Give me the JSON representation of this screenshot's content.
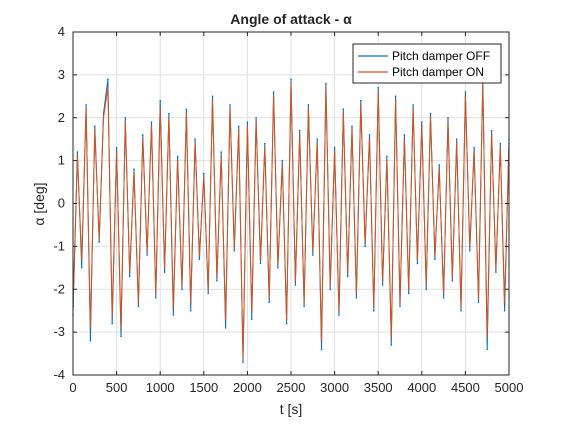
{
  "chart_data": {
    "type": "line",
    "title": "Angle of attack - α",
    "xlabel": "t [s]",
    "ylabel": "α [deg]",
    "xlim": [
      0,
      5000
    ],
    "ylim": [
      -4,
      4
    ],
    "xticks": [
      0,
      500,
      1000,
      1500,
      2000,
      2500,
      3000,
      3500,
      4000,
      4500,
      5000
    ],
    "yticks": [
      -4,
      -3,
      -2,
      -1,
      0,
      1,
      2,
      3,
      4
    ],
    "xtick_labels": [
      "0",
      "500",
      "1000",
      "1500",
      "2000",
      "2500",
      "3000",
      "3500",
      "4000",
      "4500",
      "5000"
    ],
    "ytick_labels": [
      "-4",
      "-3",
      "-2",
      "-1",
      "0",
      "1",
      "2",
      "3",
      "4"
    ],
    "grid": true,
    "legend_position": "top-right",
    "series": [
      {
        "name": "Pitch damper OFF",
        "color": "#0072BD",
        "x": [
          0,
          50,
          100,
          150,
          200,
          250,
          300,
          350,
          400,
          450,
          500,
          550,
          600,
          650,
          700,
          750,
          800,
          850,
          900,
          950,
          1000,
          1050,
          1100,
          1150,
          1200,
          1250,
          1300,
          1350,
          1400,
          1450,
          1500,
          1550,
          1600,
          1650,
          1700,
          1750,
          1800,
          1850,
          1900,
          1950,
          2000,
          2050,
          2100,
          2150,
          2200,
          2250,
          2300,
          2350,
          2400,
          2450,
          2500,
          2550,
          2600,
          2650,
          2700,
          2750,
          2800,
          2850,
          2900,
          2950,
          3000,
          3050,
          3100,
          3150,
          3200,
          3250,
          3300,
          3350,
          3400,
          3450,
          3500,
          3550,
          3600,
          3650,
          3700,
          3750,
          3800,
          3850,
          3900,
          3950,
          4000,
          4050,
          4100,
          4150,
          4200,
          4250,
          4300,
          4350,
          4400,
          4450,
          4500,
          4550,
          4600,
          4650,
          4700,
          4750,
          4800,
          4850,
          4900,
          4950,
          5000
        ],
        "values": [
          -2.6,
          1.2,
          -1.5,
          2.3,
          -3.2,
          1.8,
          -0.9,
          2.1,
          2.9,
          -2.8,
          1.3,
          -3.1,
          2.0,
          -1.7,
          0.8,
          -2.4,
          1.6,
          -1.2,
          1.9,
          -2.2,
          2.4,
          -1.6,
          2.1,
          -2.6,
          1.1,
          -2.0,
          2.2,
          -2.5,
          1.5,
          -1.3,
          0.7,
          -2.1,
          2.5,
          -1.8,
          1.2,
          -2.9,
          2.3,
          -1.1,
          1.8,
          -3.7,
          1.9,
          -2.7,
          2.0,
          -1.4,
          1.4,
          -2.3,
          2.6,
          -1.5,
          1.0,
          -2.8,
          2.9,
          -1.9,
          1.7,
          -2.4,
          2.3,
          -1.2,
          1.5,
          -3.4,
          2.8,
          -2.0,
          1.3,
          -2.6,
          2.2,
          -1.7,
          1.8,
          -2.2,
          2.4,
          -1.0,
          1.6,
          -2.5,
          2.7,
          -1.9,
          1.1,
          -3.3,
          2.5,
          -2.4,
          1.6,
          -2.1,
          2.3,
          -1.4,
          1.9,
          -2.0,
          2.1,
          -1.3,
          0.9,
          -2.2,
          2.0,
          -1.8,
          1.5,
          -2.5,
          2.6,
          -1.1,
          1.3,
          -2.3,
          2.9,
          -3.4,
          1.7,
          -1.6,
          1.4,
          -2.5,
          1.5
        ]
      },
      {
        "name": "Pitch damper ON",
        "color": "#D95319",
        "x": [
          0,
          50,
          100,
          150,
          200,
          250,
          300,
          350,
          400,
          450,
          500,
          550,
          600,
          650,
          700,
          750,
          800,
          850,
          900,
          950,
          1000,
          1050,
          1100,
          1150,
          1200,
          1250,
          1300,
          1350,
          1400,
          1450,
          1500,
          1550,
          1600,
          1650,
          1700,
          1750,
          1800,
          1850,
          1900,
          1950,
          2000,
          2050,
          2100,
          2150,
          2200,
          2250,
          2300,
          2350,
          2400,
          2450,
          2500,
          2550,
          2600,
          2650,
          2700,
          2750,
          2800,
          2850,
          2900,
          2950,
          3000,
          3050,
          3100,
          3150,
          3200,
          3250,
          3300,
          3350,
          3400,
          3450,
          3500,
          3550,
          3600,
          3650,
          3700,
          3750,
          3800,
          3850,
          3900,
          3950,
          4000,
          4050,
          4100,
          4150,
          4200,
          4250,
          4300,
          4350,
          4400,
          4450,
          4500,
          4550,
          4600,
          4650,
          4700,
          4750,
          4800,
          4850,
          4900,
          4950,
          5000
        ],
        "values": [
          -2.4,
          1.1,
          -1.3,
          2.2,
          -2.9,
          1.7,
          -0.8,
          2.0,
          2.7,
          -2.6,
          1.2,
          -2.9,
          1.9,
          -1.6,
          0.7,
          -2.3,
          1.5,
          -1.1,
          1.8,
          -2.1,
          2.2,
          -1.5,
          2.0,
          -2.4,
          1.0,
          -1.9,
          2.1,
          -2.3,
          1.4,
          -1.2,
          0.6,
          -2.0,
          2.4,
          -1.7,
          1.1,
          -2.7,
          2.2,
          -1.0,
          1.7,
          -3.6,
          1.8,
          -2.5,
          1.9,
          -1.3,
          1.3,
          -2.2,
          2.5,
          -1.4,
          0.9,
          -2.7,
          2.8,
          -1.8,
          1.6,
          -2.3,
          2.2,
          -1.1,
          1.4,
          -3.2,
          2.7,
          -1.9,
          1.2,
          -2.5,
          2.1,
          -1.6,
          1.7,
          -2.1,
          2.3,
          -0.9,
          1.5,
          -2.4,
          2.6,
          -1.8,
          1.0,
          -3.1,
          2.4,
          -2.3,
          1.5,
          -2.0,
          2.2,
          -1.3,
          1.8,
          -1.9,
          2.0,
          -1.2,
          0.8,
          -2.1,
          1.9,
          -1.7,
          1.4,
          -2.4,
          2.5,
          -1.0,
          1.2,
          -2.2,
          2.8,
          -3.1,
          1.6,
          -1.5,
          1.3,
          -2.3,
          1.4
        ]
      }
    ]
  }
}
